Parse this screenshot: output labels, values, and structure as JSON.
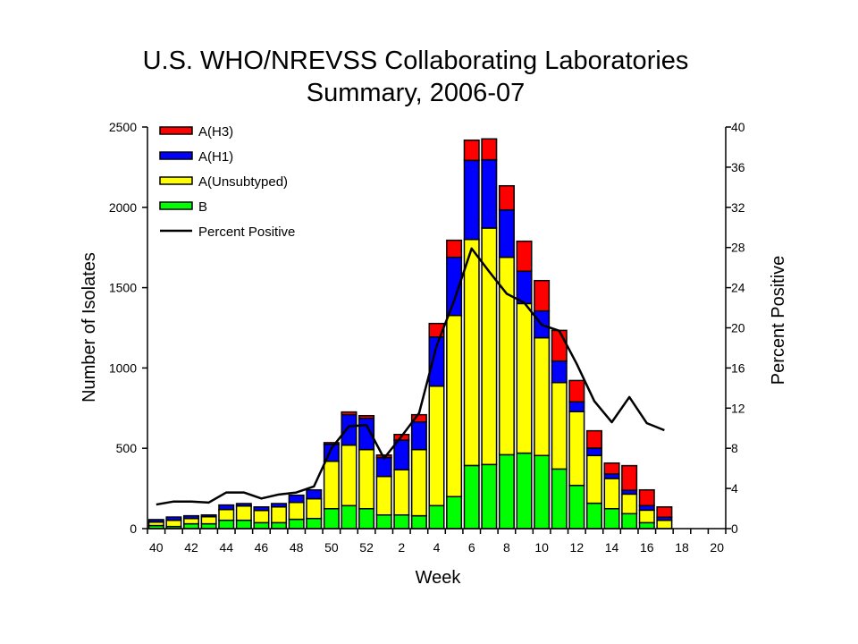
{
  "chart_data": {
    "type": "bar",
    "stacked": true,
    "title": "U.S. WHO/NREVSS Collaborating Laboratories",
    "subtitle": "Summary, 2006-07",
    "xlabel": "Week",
    "ylabel": "Number of Isolates",
    "y2label": "Percent Positive",
    "ylim": [
      0,
      2500
    ],
    "y2lim": [
      0,
      40
    ],
    "yticks": [
      0,
      500,
      1000,
      1500,
      2000,
      2500
    ],
    "y2ticks": [
      0,
      4,
      8,
      12,
      16,
      20,
      24,
      28,
      32,
      36,
      40
    ],
    "categories": [
      "40",
      "41",
      "42",
      "43",
      "44",
      "45",
      "46",
      "47",
      "48",
      "49",
      "50",
      "51",
      "52",
      "1",
      "2",
      "3",
      "4",
      "5",
      "6",
      "7",
      "8",
      "9",
      "10",
      "11",
      "12",
      "13",
      "14",
      "15",
      "16",
      "17",
      "18",
      "19",
      "20"
    ],
    "xtick_labels": [
      "40",
      "",
      "42",
      "",
      "44",
      "",
      "46",
      "",
      "48",
      "",
      "50",
      "",
      "52",
      "",
      "2",
      "",
      "4",
      "",
      "6",
      "",
      "8",
      "",
      "10",
      "",
      "12",
      "",
      "14",
      "",
      "16",
      "",
      "18",
      "",
      "20"
    ],
    "legend_position": "top-left",
    "grid": false,
    "series": [
      {
        "name": "B",
        "color": "#00ff00",
        "values": [
          19,
          13,
          30,
          30,
          52,
          52,
          37,
          37,
          58,
          63,
          124,
          143,
          124,
          85,
          85,
          80,
          143,
          199,
          393,
          399,
          460,
          470,
          455,
          371,
          269,
          158,
          124,
          93,
          37,
          0,
          0,
          0,
          0
        ]
      },
      {
        "name": "A(Unsubtyped)",
        "color": "#ffff00",
        "values": [
          22,
          39,
          33,
          44,
          67,
          89,
          76,
          98,
          105,
          123,
          295,
          377,
          368,
          240,
          282,
          412,
          744,
          1128,
          1407,
          1472,
          1229,
          931,
          733,
          538,
          459,
          297,
          188,
          122,
          78,
          52,
          0,
          0,
          0
        ]
      },
      {
        "name": "A(H1)",
        "color": "#0000ff",
        "values": [
          15,
          20,
          17,
          11,
          28,
          15,
          22,
          21,
          45,
          55,
          106,
          189,
          195,
          117,
          184,
          172,
          306,
          362,
          492,
          425,
          295,
          201,
          167,
          134,
          61,
          46,
          28,
          24,
          28,
          19,
          0,
          0,
          0
        ]
      },
      {
        "name": "A(H3)",
        "color": "#ff0000",
        "values": [
          0,
          0,
          0,
          0,
          0,
          0,
          0,
          0,
          0,
          0,
          10,
          17,
          16,
          16,
          35,
          45,
          84,
          106,
          126,
          130,
          150,
          187,
          189,
          191,
          133,
          108,
          68,
          153,
          98,
          64,
          0,
          0,
          0
        ]
      }
    ],
    "line_series": {
      "name": "Percent Positive",
      "axis": "right",
      "color": "#000000",
      "values": [
        2.4,
        2.7,
        2.7,
        2.6,
        3.6,
        3.6,
        3.0,
        3.4,
        3.6,
        4.2,
        8.0,
        10.2,
        10.3,
        7.0,
        9.2,
        11.5,
        18.2,
        22.7,
        27.9,
        25.6,
        23.4,
        22.5,
        20.3,
        19.7,
        16.4,
        12.7,
        10.6,
        13.1,
        10.5,
        9.8,
        null,
        null,
        null
      ]
    },
    "legend": [
      "A(H3)",
      "A(H1)",
      "A(Unsubtyped)",
      "B",
      "Percent Positive"
    ]
  }
}
